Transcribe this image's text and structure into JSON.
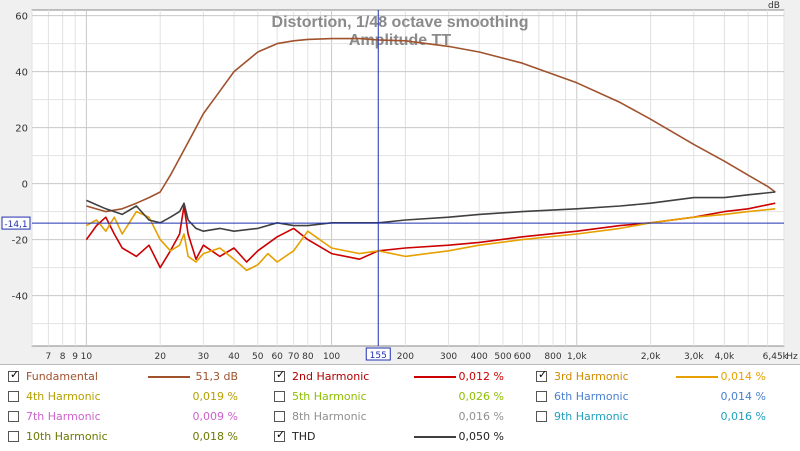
{
  "chart_data": {
    "type": "line",
    "title": "Distortion, 1/48 octave smoothing",
    "subtitle": "Amplitude TT",
    "y_unit": "dB",
    "x_unit": "Hz",
    "xscale": "log",
    "xlim": [
      6,
      7000
    ],
    "ylim": [
      -58,
      62
    ],
    "y_ticks": [
      60,
      40,
      20,
      0,
      -20,
      -40
    ],
    "x_ticks": [
      {
        "v": 7,
        "label": "7"
      },
      {
        "v": 8,
        "label": "8"
      },
      {
        "v": 9,
        "label": "9"
      },
      {
        "v": 10,
        "label": "10"
      },
      {
        "v": 20,
        "label": "20"
      },
      {
        "v": 30,
        "label": "30"
      },
      {
        "v": 40,
        "label": "40"
      },
      {
        "v": 50,
        "label": "50"
      },
      {
        "v": 60,
        "label": "60"
      },
      {
        "v": 70,
        "label": "70"
      },
      {
        "v": 80,
        "label": "80"
      },
      {
        "v": 100,
        "label": "100"
      },
      {
        "v": 200,
        "label": "200"
      },
      {
        "v": 300,
        "label": "300"
      },
      {
        "v": 400,
        "label": "400"
      },
      {
        "v": 500,
        "label": "500"
      },
      {
        "v": 600,
        "label": "600"
      },
      {
        "v": 800,
        "label": "800"
      },
      {
        "v": 1000,
        "label": "1,0k"
      },
      {
        "v": 2000,
        "label": "2,0k"
      },
      {
        "v": 3000,
        "label": "3,0k"
      },
      {
        "v": 4000,
        "label": "4,0k"
      },
      {
        "v": 6450,
        "label": "6,45k"
      }
    ],
    "cursor": {
      "x": 155,
      "x_label": "155",
      "y": -14.1,
      "y_label": "-14,1"
    },
    "grid": true,
    "series": [
      {
        "name": "Fundamental",
        "color": "#a0522d",
        "x": [
          10,
          12,
          14,
          16,
          18,
          20,
          22,
          25,
          28,
          30,
          35,
          40,
          50,
          60,
          70,
          80,
          100,
          130,
          155,
          200,
          300,
          400,
          600,
          1000,
          1500,
          2000,
          3000,
          4000,
          5000,
          6000,
          6450
        ],
        "y": [
          -8,
          -10,
          -9,
          -7,
          -5,
          -3,
          3,
          12,
          20,
          25,
          33,
          40,
          47,
          50,
          51,
          51.5,
          51.8,
          51.8,
          51.3,
          51,
          49,
          47,
          43,
          36,
          29,
          23,
          14,
          8,
          3,
          -1,
          -3
        ]
      },
      {
        "name": "2nd Harmonic",
        "color": "#cc0000",
        "x": [
          10,
          11,
          12,
          13,
          14,
          16,
          18,
          20,
          22,
          24,
          25,
          26,
          28,
          30,
          35,
          40,
          45,
          50,
          60,
          70,
          80,
          100,
          130,
          155,
          200,
          300,
          400,
          600,
          1000,
          1500,
          2000,
          3000,
          4000,
          5000,
          6450
        ],
        "y": [
          -20,
          -15,
          -12,
          -18,
          -23,
          -26,
          -22,
          -30,
          -24,
          -18,
          -8,
          -18,
          -27,
          -22,
          -26,
          -23,
          -28,
          -24,
          -19,
          -16,
          -20,
          -25,
          -27,
          -24,
          -23,
          -22,
          -21,
          -19,
          -17,
          -15,
          -14,
          -12,
          -10,
          -9,
          -7
        ]
      },
      {
        "name": "3rd Harmonic",
        "color": "#e6a000",
        "x": [
          10,
          11,
          12,
          13,
          14,
          16,
          18,
          20,
          22,
          24,
          25,
          26,
          28,
          30,
          35,
          40,
          45,
          50,
          55,
          60,
          70,
          80,
          100,
          130,
          155,
          200,
          300,
          400,
          600,
          1000,
          1500,
          2000,
          3000,
          4000,
          5000,
          6450
        ],
        "y": [
          -15,
          -13,
          -17,
          -12,
          -18,
          -10,
          -12,
          -20,
          -24,
          -22,
          -18,
          -26,
          -28,
          -25,
          -23,
          -27,
          -31,
          -29,
          -25,
          -28,
          -24,
          -17,
          -23,
          -25,
          -24,
          -26,
          -24,
          -22,
          -20,
          -18,
          -16,
          -14,
          -12,
          -11,
          -10,
          -9
        ]
      },
      {
        "name": "4th Harmonic",
        "color": "#b5a000",
        "value": "0,019 %",
        "enabled": false
      },
      {
        "name": "THD",
        "color": "#404040",
        "x": [
          10,
          12,
          14,
          16,
          18,
          20,
          22,
          24,
          25,
          26,
          28,
          30,
          35,
          40,
          50,
          60,
          70,
          80,
          100,
          130,
          155,
          200,
          300,
          400,
          600,
          1000,
          1500,
          2000,
          3000,
          4000,
          5000,
          6450
        ],
        "y": [
          -6,
          -9,
          -11,
          -8,
          -13,
          -14,
          -12,
          -10,
          -7,
          -13,
          -16,
          -17,
          -16,
          -17,
          -16,
          -14,
          -15,
          -15,
          -14,
          -14,
          -14,
          -13,
          -12,
          -11,
          -10,
          -9,
          -8,
          -7,
          -5,
          -5,
          -4,
          -3
        ]
      }
    ]
  },
  "legend": {
    "items": [
      {
        "name": "Fundamental",
        "checked": true,
        "value": "51,3 dB",
        "color": "#a0522d",
        "show_line": true
      },
      {
        "name": "2nd Harmonic",
        "checked": true,
        "value": "0,012 %",
        "color": "#cc0000",
        "show_line": true
      },
      {
        "name": "3rd Harmonic",
        "checked": true,
        "value": "0,014 %",
        "color": "#e6a000",
        "show_line": true
      },
      {
        "name": "4th Harmonic",
        "checked": false,
        "value": "0,019 %",
        "color": "#b5a000",
        "show_line": false
      },
      {
        "name": "5th Harmonic",
        "checked": false,
        "value": "0,026 %",
        "color": "#8fc000",
        "show_line": false
      },
      {
        "name": "6th Harmonic",
        "checked": false,
        "value": "0,014 %",
        "color": "#4a7fd0",
        "show_line": false
      },
      {
        "name": "7th Harmonic",
        "checked": false,
        "value": "0,009 %",
        "color": "#d060d0",
        "show_line": false
      },
      {
        "name": "8th Harmonic",
        "checked": false,
        "value": "0,016 %",
        "color": "#909090",
        "show_line": false
      },
      {
        "name": "9th Harmonic",
        "checked": false,
        "value": "0,016 %",
        "color": "#20a0c0",
        "show_line": false
      },
      {
        "name": "10th Harmonic",
        "checked": false,
        "value": "0,018 %",
        "color": "#6a7a00",
        "show_line": false
      },
      {
        "name": "THD",
        "checked": true,
        "value": "0,050 %",
        "color": "#404040",
        "show_line": true
      }
    ]
  }
}
